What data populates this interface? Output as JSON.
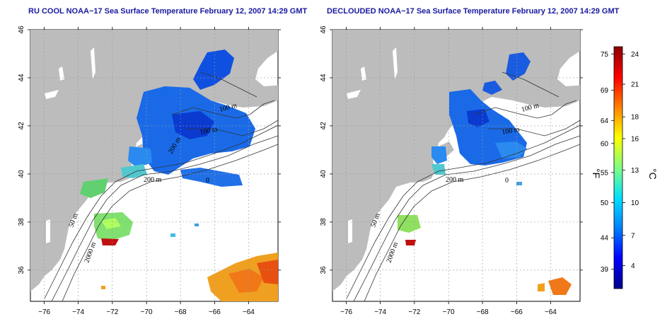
{
  "panels": [
    {
      "title": "RU COOL NOAA−17 Sea Surface Temperature February 12, 2007 14:29 GMT",
      "contour_labels": [
        "100 m",
        "100 m",
        "200 m",
        "200 m",
        "50 m",
        "2000 m",
        "0"
      ]
    },
    {
      "title": "DECLOUDED NOAA−17 Sea Surface Temperature February 12, 2007 14:29 GMT",
      "contour_labels": [
        "100 m",
        "100 m",
        "200 m",
        "50 m",
        "2000 m",
        "0"
      ]
    }
  ],
  "axes": {
    "lon_ticks": [
      "−76",
      "−74",
      "−72",
      "−70",
      "−68",
      "−66",
      "−64"
    ],
    "lat_ticks": [
      "46",
      "44",
      "42",
      "40",
      "38",
      "36"
    ]
  },
  "colorbar": {
    "fahrenheit_label": "°F",
    "celsius_label": "°C",
    "fahrenheit_ticks": [
      "75",
      "69",
      "64",
      "60",
      "55",
      "50",
      "44",
      "39"
    ],
    "celsius_ticks": [
      "24",
      "21",
      "18",
      "16",
      "13",
      "10",
      "7",
      "4"
    ],
    "colors": [
      "#00008b",
      "#0000ff",
      "#0080ff",
      "#00e0ff",
      "#80ff80",
      "#ffff00",
      "#ff8000",
      "#ff0000",
      "#8b0000"
    ]
  }
}
